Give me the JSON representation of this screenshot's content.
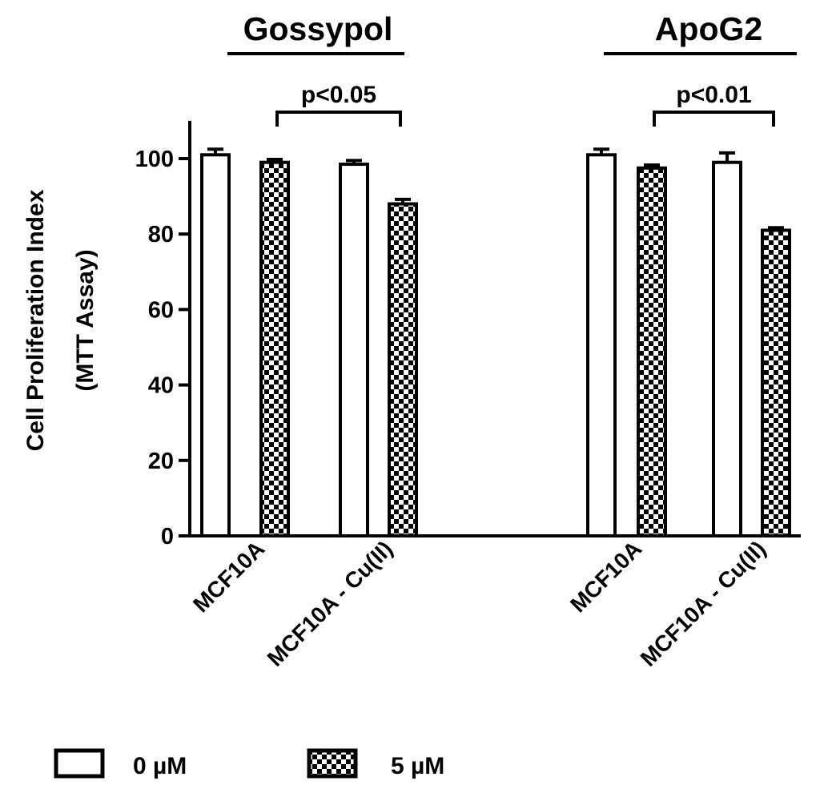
{
  "chart_data": {
    "type": "bar",
    "ylabel_line1": "Cell Proliferation Index",
    "ylabel_line2": "(MTT Assay)",
    "ylim": [
      0,
      110
    ],
    "yticks": [
      0,
      20,
      40,
      60,
      80,
      100
    ],
    "groups": [
      {
        "title": "Gossypol",
        "categories": [
          "MCF10A",
          "MCF10A - Cu(II)"
        ],
        "significance": "p<0.05",
        "values": {
          "0 µM": [
            101,
            98.5
          ],
          "5 µM": [
            99,
            88
          ]
        },
        "errors": {
          "0 µM": [
            1.5,
            1
          ],
          "5 µM": [
            0.8,
            1.2
          ]
        }
      },
      {
        "title": "ApoG2",
        "categories": [
          "MCF10A",
          "MCF10A - Cu(II)"
        ],
        "significance": "p<0.01",
        "values": {
          "0 µM": [
            101,
            99
          ],
          "5 µM": [
            97.5,
            81
          ]
        },
        "errors": {
          "0 µM": [
            1.5,
            2.5
          ],
          "5 µM": [
            0.8,
            0.7
          ]
        }
      }
    ],
    "series": [
      {
        "name": "0 µM",
        "pattern": "open"
      },
      {
        "name": "5 µM",
        "pattern": "checkered"
      }
    ],
    "legend_position": "bottom-left",
    "grid": false
  }
}
